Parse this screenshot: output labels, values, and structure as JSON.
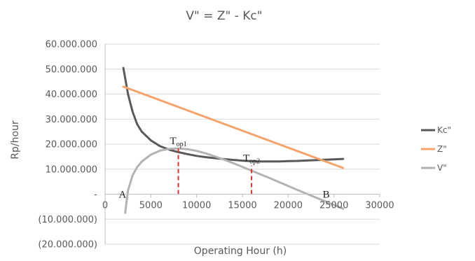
{
  "chart_data": {
    "type": "line",
    "title": "V\" = Z\" - Kc\"",
    "xlabel": "Operating Hour (h)",
    "ylabel": "Rp/hour",
    "xlim": [
      0,
      30000
    ],
    "ylim": [
      -20000000,
      60000000
    ],
    "x_ticks": [
      {
        "value": 0,
        "label": "0"
      },
      {
        "value": 5000,
        "label": "5000"
      },
      {
        "value": 10000,
        "label": "10000"
      },
      {
        "value": 15000,
        "label": "15000"
      },
      {
        "value": 20000,
        "label": "20000"
      },
      {
        "value": 25000,
        "label": "25000"
      },
      {
        "value": 30000,
        "label": "30000"
      }
    ],
    "y_ticks": [
      {
        "value": 60000000,
        "label": "60.000.000"
      },
      {
        "value": 50000000,
        "label": "50.000.000"
      },
      {
        "value": 40000000,
        "label": "40.000.000"
      },
      {
        "value": 30000000,
        "label": "30.000.000"
      },
      {
        "value": 20000000,
        "label": "20.000.000"
      },
      {
        "value": 10000000,
        "label": "10.000.000"
      },
      {
        "value": 0,
        "label": "-"
      },
      {
        "value": -10000000,
        "label": "(10.000.000)"
      },
      {
        "value": -20000000,
        "label": "(20.000.000)"
      }
    ],
    "grid": true,
    "legend_position": "right",
    "series": [
      {
        "name": "Kc\"",
        "color": "#595959",
        "x": [
          2000,
          2500,
          3000,
          3500,
          4000,
          5000,
          6000,
          7000,
          8000,
          9000,
          10000,
          11000,
          12000,
          13000,
          14000,
          15000,
          16000,
          17000,
          18000,
          19000,
          20000,
          21000,
          22000,
          23000,
          24000,
          25000,
          26000
        ],
        "y": [
          50500000,
          40000000,
          33000000,
          28000000,
          25000000,
          21500000,
          19200000,
          17800000,
          16800000,
          16000000,
          15300000,
          14800000,
          14400000,
          14000000,
          13700000,
          13400000,
          13200000,
          13100000,
          13050000,
          13100000,
          13200000,
          13300000,
          13450000,
          13600000,
          13750000,
          13900000,
          14100000
        ]
      },
      {
        "name": "Z\"",
        "color": "#f4a46a",
        "x": [
          2000,
          26000
        ],
        "y": [
          43000000,
          10500000
        ]
      },
      {
        "name": "V\"",
        "color": "#b3b3b3",
        "x": [
          2200,
          2500,
          3000,
          3500,
          4000,
          5000,
          6000,
          7000,
          8000,
          9000,
          10000,
          11000,
          12000,
          13000,
          14000,
          15000,
          16000,
          17000,
          18000,
          19000,
          20000,
          21000,
          22000,
          23000,
          24000,
          25000,
          26000
        ],
        "y": [
          -7500000,
          1500000,
          7500000,
          10800000,
          13000000,
          15800000,
          17400000,
          18100000,
          18300000,
          18000000,
          17300000,
          16300000,
          15100000,
          13800000,
          12400000,
          10900000,
          9400000,
          7900000,
          6400000,
          4800000,
          3300000,
          1700000,
          200000,
          -1300000,
          -2800000,
          -4300000,
          -5800000
        ]
      }
    ],
    "annotations": [
      {
        "text": "T",
        "subscript": "op1",
        "x": 8000,
        "y": 18300000
      },
      {
        "text": "T",
        "subscript": "op2",
        "x": 16000,
        "y": 11500000
      },
      {
        "text": "A",
        "x": 2200,
        "y": 0
      },
      {
        "text": "B",
        "x": 24000,
        "y": 0
      }
    ],
    "reference_lines": [
      {
        "x": 8000,
        "y_from": 0,
        "y_to": 18300000,
        "color": "#e53030",
        "style": "dashed"
      },
      {
        "x": 16000,
        "y_from": 0,
        "y_to": 11400000,
        "color": "#e53030",
        "style": "dashed"
      }
    ]
  }
}
